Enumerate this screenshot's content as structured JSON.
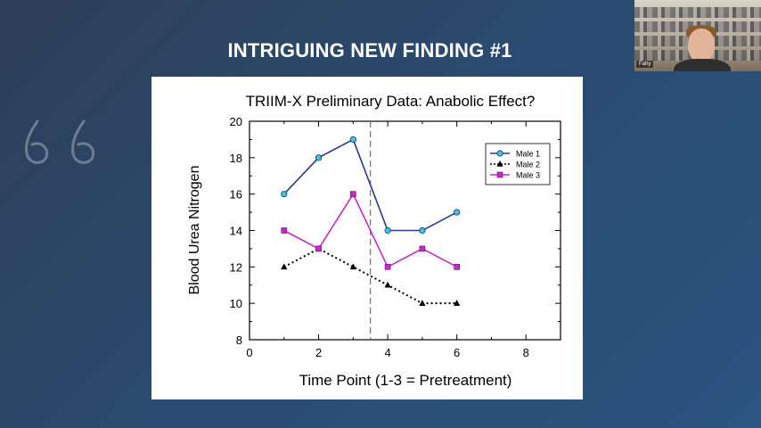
{
  "slide": {
    "title": "INTRIGUING NEW FINDING #1"
  },
  "webcam": {
    "participant_name": "Fahy"
  },
  "decor": {
    "icon": "quote-icon"
  },
  "chart_data": {
    "type": "line",
    "title": "TRIIM-X Preliminary Data:  Anabolic Effect?",
    "xlabel": "Time Point (1-3 = Pretreatment)",
    "ylabel": "Blood Urea Nitrogen",
    "xlim": [
      0,
      9
    ],
    "ylim": [
      8,
      20
    ],
    "xticks": [
      0,
      2,
      4,
      6,
      8
    ],
    "yticks": [
      8,
      10,
      12,
      14,
      16,
      18,
      20
    ],
    "vertical_reference_line": {
      "x": 3.5,
      "style": "dashed"
    },
    "legend_placement": "top-right",
    "grid": false,
    "series": [
      {
        "name": "Male 1",
        "x": [
          1,
          2,
          3,
          4,
          5,
          6
        ],
        "y": [
          16,
          18,
          19,
          14,
          14,
          15
        ],
        "color": "#2b3a8f",
        "marker": "circle",
        "marker_color": "#3cc8dc",
        "line_style": "solid"
      },
      {
        "name": "Male 2",
        "x": [
          1,
          2,
          3,
          4,
          5,
          6
        ],
        "y": [
          12,
          13,
          12,
          11,
          10,
          10
        ],
        "color": "#000000",
        "marker": "triangle",
        "marker_color": "#000000",
        "line_style": "dotted"
      },
      {
        "name": "Male 3",
        "x": [
          1,
          2,
          3,
          4,
          5,
          6
        ],
        "y": [
          14,
          13,
          16,
          12,
          13,
          12
        ],
        "color": "#c62ac6",
        "marker": "square",
        "marker_color": "#c62ac6",
        "line_style": "solid"
      }
    ]
  }
}
